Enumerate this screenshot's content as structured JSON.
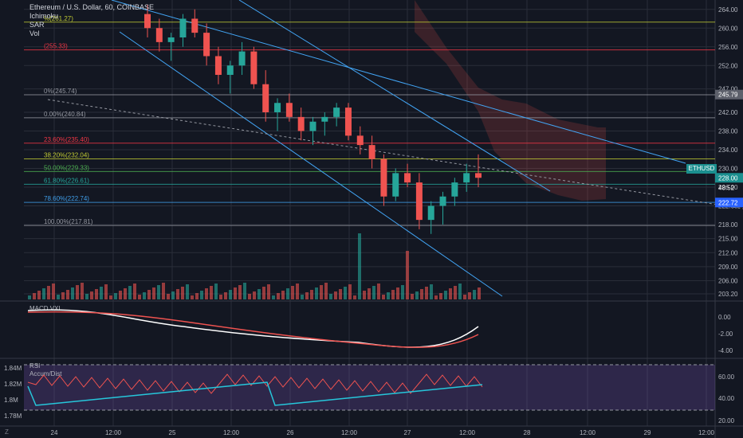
{
  "chart_data": [
    {
      "type": "candlestick",
      "title": "Ethereum / U.S. Dollar, 60, COINBASE",
      "symbol": "ETHUSD",
      "indicators": [
        "Ichimoku",
        "SAR",
        "Vol"
      ],
      "last_price": "228.00",
      "countdown": "48:52",
      "highlight_price": "222.72",
      "ichimoku_label": "245.79",
      "y_ticks": [
        "264.00",
        "260.00",
        "256.00",
        "252.00",
        "247.00",
        "242.00",
        "238.00",
        "234.00",
        "230.00",
        "226.00",
        "222.00",
        "218.00",
        "215.00",
        "212.00",
        "209.00",
        "206.00",
        "203.20"
      ],
      "x_ticks": [
        "24",
        "12:00",
        "25",
        "12:00",
        "26",
        "12:00",
        "27",
        "12:00",
        "28",
        "12:00",
        "29",
        "12:00"
      ],
      "fib_levels": [
        {
          "label": "0.00%(240.84)",
          "price": 240.84,
          "color": "#9598a1"
        },
        {
          "label": "23.60%(235.40)",
          "price": 235.4,
          "color": "#f23645"
        },
        {
          "label": "38.20%(232.04)",
          "price": 232.04,
          "color": "#c0ca33"
        },
        {
          "label": "50.00%(229.33)",
          "price": 229.33,
          "color": "#4caf50"
        },
        {
          "label": "61.80%(226.61)",
          "price": 226.61,
          "color": "#26a69a"
        },
        {
          "label": "78.60%(222.74)",
          "price": 222.74,
          "color": "#3f9ee9"
        },
        {
          "label": "100.00%(217.81)",
          "price": 217.81,
          "color": "#9598a1"
        },
        {
          "label": "%(261.27)",
          "price": 261.27,
          "color": "#c0ca33"
        },
        {
          "label": "(255.33)",
          "price": 255.33,
          "color": "#f23645"
        },
        {
          "label": "0%(245.74)",
          "price": 245.74,
          "color": "#9598a1"
        }
      ],
      "candles": [
        [
          263,
          265,
          258,
          260
        ],
        [
          260,
          262,
          255,
          257
        ],
        [
          257,
          259,
          253,
          258
        ],
        [
          258,
          263,
          256,
          262
        ],
        [
          262,
          264,
          258,
          259
        ],
        [
          259,
          261,
          252,
          254
        ],
        [
          254,
          256,
          248,
          250
        ],
        [
          250,
          253,
          246,
          252
        ],
        [
          252,
          257,
          250,
          255
        ],
        [
          255,
          256,
          247,
          248
        ],
        [
          248,
          251,
          240,
          242
        ],
        [
          242,
          245,
          238,
          244
        ],
        [
          244,
          246,
          240,
          241
        ],
        [
          241,
          243,
          236,
          238
        ],
        [
          238,
          241,
          235,
          240
        ],
        [
          240,
          242,
          237,
          241
        ],
        [
          241,
          244,
          239,
          243
        ],
        [
          243,
          244,
          236,
          237
        ],
        [
          237,
          239,
          233,
          235
        ],
        [
          235,
          237,
          230,
          232
        ],
        [
          232,
          233,
          222,
          224
        ],
        [
          224,
          230,
          223,
          229
        ],
        [
          229,
          231,
          226,
          227
        ],
        [
          227,
          229,
          217,
          219
        ],
        [
          219,
          223,
          216,
          222
        ],
        [
          222,
          225,
          218,
          224
        ],
        [
          224,
          228,
          222,
          227
        ],
        [
          227,
          231,
          225,
          229
        ],
        [
          229,
          233,
          226,
          228
        ]
      ],
      "macd_ticks": [
        "0.00",
        "-2.00",
        "-4.00"
      ],
      "osc_left_ticks": [
        "1.84M",
        "1.82M",
        "1.8M",
        "1.78M"
      ],
      "osc_right_ticks": [
        "60.00",
        "40.00",
        "20.00"
      ],
      "osc_labels": [
        "RSI",
        "Accum/Dist"
      ],
      "macd_label": "MACD  VXI",
      "colors": {
        "up": "#26a69a",
        "down": "#ef5350",
        "bg": "#131722",
        "grid": "#2a2e39",
        "text": "#b2b5be",
        "macd": "#ffffff",
        "signal": "#ef5350",
        "rsi": "#ef5350",
        "ad": "#26c6da"
      }
    }
  ],
  "corner_label": "Z"
}
